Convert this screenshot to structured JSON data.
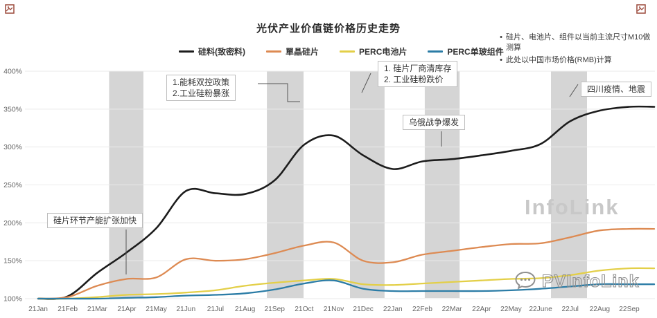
{
  "page": {
    "title": "光伏产业价值链价格历史走势"
  },
  "notes": {
    "bullet1": "硅片、电池片、组件以当前主流尺寸M10做测算",
    "bullet2": "此处以中国市场价格(RMB)计算"
  },
  "watermark": {
    "brand": "InfoLink",
    "logo_text": "PVInfoLink"
  },
  "annotations": {
    "wafer_expansion": {
      "text": "硅片环节产能扩张加快"
    },
    "dual_control": {
      "line1": "1.能耗双控政策",
      "line2": "2.工业硅粉暴涨"
    },
    "inventory_clear": {
      "line1": "1. 硅片厂商清库存",
      "line2": "2. 工业硅粉跌价"
    },
    "ukraine_war": {
      "text": "乌俄战争爆发"
    },
    "sichuan": {
      "text": "四川疫情、地震"
    }
  },
  "chart_data": {
    "type": "line",
    "title": "光伏产业价值链价格历史走势",
    "xlabel": "",
    "ylabel": "",
    "y_unit": "%",
    "ylim": [
      100,
      400
    ],
    "y_ticks": [
      400,
      350,
      300,
      250,
      200,
      150,
      100
    ],
    "y_tick_suffix": "%",
    "grid": true,
    "legend_position": "top",
    "x": [
      "21Jan",
      "21Feb",
      "21Mar",
      "21Apr",
      "21May",
      "21Jun",
      "21Jul",
      "21Aug",
      "21Sep",
      "21Oct",
      "21Nov",
      "21Dec",
      "22Jan",
      "22Feb",
      "22Mar",
      "22Apr",
      "22May",
      "22June",
      "22Jul",
      "22Aug",
      "22Sep"
    ],
    "series": [
      {
        "name": "硅料(致密料)",
        "color": "#1c1c1c",
        "width": 2.6,
        "values": [
          100,
          103,
          134,
          161,
          193,
          242,
          239,
          238,
          256,
          303,
          315,
          289,
          271,
          281,
          284,
          289,
          295,
          304,
          334,
          348,
          353
        ]
      },
      {
        "name": "單晶硅片",
        "color": "#dd8a52",
        "width": 2.3,
        "values": [
          100,
          102,
          117,
          126,
          128,
          152,
          150,
          152,
          160,
          170,
          174,
          150,
          148,
          158,
          163,
          168,
          172,
          173,
          181,
          190,
          192
        ]
      },
      {
        "name": "PERC电池片",
        "color": "#e3cf48",
        "width": 2.3,
        "values": [
          100,
          100,
          102,
          105,
          106,
          108,
          111,
          117,
          121,
          124,
          126,
          119,
          118,
          120,
          122,
          124,
          126,
          127,
          131,
          137,
          140
        ]
      },
      {
        "name": "PERC单玻组件",
        "color": "#2b7ca6",
        "width": 2.3,
        "values": [
          100,
          100,
          100,
          101,
          102,
          104,
          105,
          107,
          112,
          120,
          124,
          113,
          110,
          110,
          110,
          110,
          111,
          113,
          116,
          119,
          119
        ]
      }
    ],
    "highlight_bands": [
      {
        "from_index": 2.4,
        "to_index": 3.56
      },
      {
        "from_index": 7.74,
        "to_index": 8.98
      },
      {
        "from_index": 10.55,
        "to_index": 11.72
      },
      {
        "from_index": 13.08,
        "to_index": 14.26
      },
      {
        "from_index": 17.35,
        "to_index": 18.57
      }
    ],
    "band_color": "#d5d5d5",
    "grid_color": "#eaeaea",
    "tick_color": "#666666"
  }
}
